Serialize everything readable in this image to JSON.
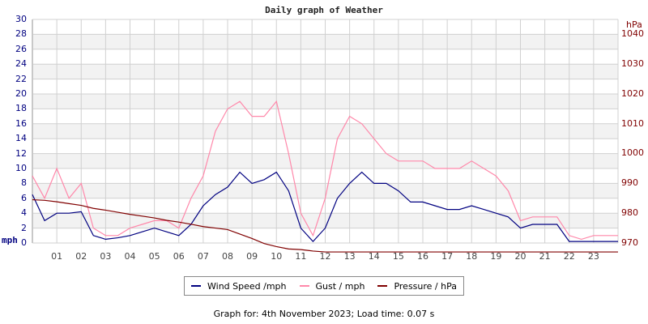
{
  "title": "Daily graph of Weather",
  "footer": "Graph for: 4th November 2023; Load time: 0.07 s",
  "colors": {
    "wind": "#000080",
    "gust": "#ff88aa",
    "pressure": "#800000",
    "grid": "#d0d0d0",
    "band": "#f2f2f2",
    "left_axis": "#000080",
    "right_axis": "#800000"
  },
  "axes": {
    "left_unit": "mph",
    "right_unit": "hPa",
    "left_ticks": [
      "0",
      "2",
      "4",
      "6",
      "8",
      "10",
      "12",
      "14",
      "16",
      "18",
      "20",
      "22",
      "24",
      "26",
      "28",
      "30"
    ],
    "right_ticks": [
      "970",
      "980",
      "990",
      "1000",
      "1010",
      "1020",
      "1030",
      "1040"
    ],
    "x_ticks": [
      "01",
      "02",
      "03",
      "04",
      "05",
      "06",
      "07",
      "08",
      "09",
      "10",
      "11",
      "12",
      "13",
      "14",
      "15",
      "16",
      "17",
      "18",
      "19",
      "20",
      "21",
      "22",
      "23"
    ]
  },
  "legend": [
    {
      "label": "Wind Speed /mph",
      "color": "#000080"
    },
    {
      "label": "Gust / mph",
      "color": "#ff88aa"
    },
    {
      "label": "Pressure / hPa",
      "color": "#800000"
    }
  ],
  "chart_data": {
    "type": "line",
    "title": "Daily graph of Weather",
    "xlabel": "",
    "ylabel": "mph",
    "y2label": "hPa",
    "ylim": [
      0,
      30
    ],
    "y2lim": [
      970,
      1040
    ],
    "xlim": [
      0,
      24
    ],
    "grid": true,
    "legend_position": "bottom",
    "x": [
      0,
      0.5,
      1,
      1.5,
      2,
      2.5,
      3,
      3.5,
      4,
      4.5,
      5,
      5.5,
      6,
      6.5,
      7,
      7.5,
      8,
      8.5,
      9,
      9.5,
      10,
      10.5,
      11,
      11.5,
      12,
      12.5,
      13,
      13.5,
      14,
      14.5,
      15,
      15.5,
      16,
      16.5,
      17,
      17.5,
      18,
      18.5,
      19,
      19.5,
      20,
      20.5,
      21,
      21.5,
      22,
      22.5,
      23,
      23.5,
      24
    ],
    "series": [
      {
        "name": "Wind Speed /mph",
        "axis": "left",
        "values": [
          6.5,
          3,
          4,
          4,
          4.2,
          1,
          0.5,
          0.7,
          1,
          1.5,
          2,
          1.5,
          1,
          2.5,
          5,
          6.5,
          7.5,
          9.5,
          8,
          8.5,
          9.5,
          7,
          2,
          0.2,
          2,
          6,
          8,
          9.5,
          8,
          8,
          7,
          5.5,
          5.5,
          5,
          4.5,
          4.5,
          5,
          4.5,
          4,
          3.5,
          2,
          2.5,
          2.5,
          2.5,
          0.2,
          0.2,
          0.2,
          0.2,
          0.2
        ]
      },
      {
        "name": "Gust / mph",
        "axis": "left",
        "values": [
          9,
          6,
          10,
          6,
          8,
          2,
          1,
          1,
          2,
          2.5,
          3,
          3,
          2,
          6,
          9,
          15,
          18,
          19,
          17,
          17,
          19,
          12,
          4,
          1,
          6,
          14,
          17,
          16,
          14,
          12,
          11,
          11,
          11,
          10,
          10,
          10,
          11,
          10,
          9,
          7,
          3,
          3.5,
          3.5,
          3.5,
          1,
          0.5,
          1,
          1,
          1
        ]
      },
      {
        "name": "Pressure / hPa",
        "axis": "right",
        "values": [
          984.5,
          984.3,
          983.8,
          983.2,
          982.6,
          981.6,
          981,
          980.3,
          979.6,
          979,
          978.4,
          977.6,
          977,
          976.3,
          975.5,
          975,
          974.5,
          973,
          971.5,
          969.8,
          968.8,
          968,
          967.8,
          967.3,
          967,
          967,
          967,
          967,
          967,
          967,
          967,
          967,
          967,
          967,
          967,
          967,
          967,
          967,
          967,
          967,
          967,
          967,
          967,
          967,
          967,
          967,
          967,
          967,
          967
        ]
      }
    ]
  }
}
